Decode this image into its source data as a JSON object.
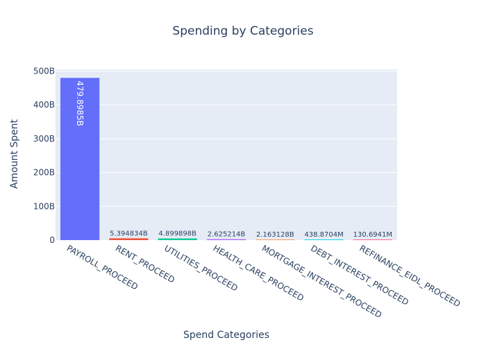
{
  "chart_data": {
    "type": "bar",
    "title": "Spending by Categories",
    "xlabel": "Spend Categories",
    "ylabel": "Amount Spent",
    "categories": [
      "PAYROLL_PROCEED",
      "RENT_PROCEED",
      "UTILITIES_PROCEED",
      "HEALTH_CARE_PROCEED",
      "MORTGAGE_INTEREST_PROCEED",
      "DEBT_INTEREST_PROCEED",
      "REFINANCE_EIDL_PROCEED"
    ],
    "values": [
      479898500000,
      5394834000,
      4899898000,
      2625214000,
      2163128000,
      438870400,
      130694100
    ],
    "value_labels": [
      "479.8985B",
      "5.394834B",
      "4.899898B",
      "2.625214B",
      "2.163128B",
      "438.8704M",
      "130.6941M"
    ],
    "colors": [
      "#636efa",
      "#ef553b",
      "#00cc96",
      "#ab63fa",
      "#ffa15a",
      "#19d3f3",
      "#ff6692"
    ],
    "ylim": [
      0,
      505000000000
    ],
    "yticks": [
      0,
      100000000000,
      200000000000,
      300000000000,
      400000000000,
      500000000000
    ],
    "ytick_labels": [
      "0",
      "100B",
      "200B",
      "300B",
      "400B",
      "500B"
    ],
    "grid": true,
    "plot_bgcolor": "#e5ecf6"
  }
}
